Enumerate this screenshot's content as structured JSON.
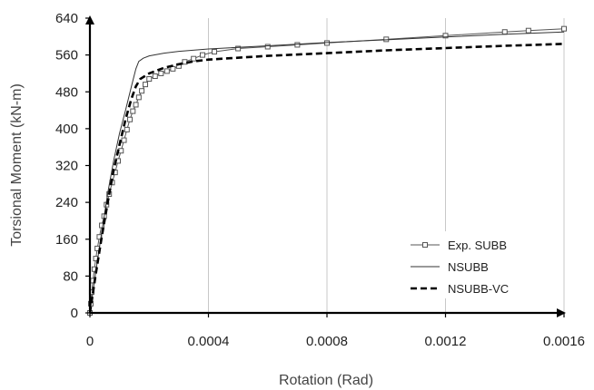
{
  "chart_data": {
    "type": "line",
    "title": "",
    "xlabel": "Rotation (Rad)",
    "ylabel": "Torsional Moment (kN-m)",
    "xlim": [
      0,
      0.0016
    ],
    "ylim": [
      0,
      640
    ],
    "x_ticks": [
      0,
      0.0004,
      0.0008,
      0.0012,
      0.0016
    ],
    "x_tick_labels": [
      "0",
      "0.0004",
      "0.0008",
      "0.0012",
      "0.0016"
    ],
    "y_ticks": [
      0,
      80,
      160,
      240,
      320,
      400,
      480,
      560,
      640
    ],
    "y_tick_labels": [
      "0",
      "80",
      "160",
      "240",
      "320",
      "400",
      "480",
      "560",
      "640"
    ],
    "grid": "vertical",
    "legend_position": "bottom-right",
    "series": [
      {
        "name": "Exp. SUBB",
        "style": "solid-square-markers",
        "color": "#555555",
        "points": [
          [
            0,
            0
          ],
          [
            3e-06,
            20
          ],
          [
            6e-06,
            45
          ],
          [
            1e-05,
            70
          ],
          [
            1.5e-05,
            95
          ],
          [
            2e-05,
            118
          ],
          [
            2.5e-05,
            140
          ],
          [
            3.2e-05,
            165
          ],
          [
            4e-05,
            190
          ],
          [
            4.8e-05,
            210
          ],
          [
            5.6e-05,
            235
          ],
          [
            6.5e-05,
            258
          ],
          [
            7.5e-05,
            283
          ],
          [
            8.5e-05,
            305
          ],
          [
            9.5e-05,
            330
          ],
          [
            0.000105,
            352
          ],
          [
            0.000115,
            375
          ],
          [
            0.000125,
            398
          ],
          [
            0.000135,
            420
          ],
          [
            0.000145,
            438
          ],
          [
            0.000155,
            452
          ],
          [
            0.000165,
            468
          ],
          [
            0.000175,
            482
          ],
          [
            0.000187,
            496
          ],
          [
            0.0002,
            508
          ],
          [
            0.00022,
            514
          ],
          [
            0.00024,
            520
          ],
          [
            0.00026,
            525
          ],
          [
            0.00028,
            530
          ],
          [
            0.0003,
            536
          ],
          [
            0.00032,
            545
          ],
          [
            0.00035,
            552
          ],
          [
            0.00038,
            560
          ],
          [
            0.00042,
            567
          ],
          [
            0.0005,
            574
          ],
          [
            0.0006,
            578
          ],
          [
            0.0007,
            582
          ],
          [
            0.0008,
            586
          ],
          [
            0.001,
            594
          ],
          [
            0.0012,
            602
          ],
          [
            0.0014,
            610
          ],
          [
            0.00148,
            613
          ],
          [
            0.0016,
            617
          ]
        ]
      },
      {
        "name": "NSUBB",
        "style": "solid",
        "color": "#333333",
        "points": [
          [
            0,
            0
          ],
          [
            2e-05,
            90
          ],
          [
            4e-05,
            175
          ],
          [
            6e-05,
            260
          ],
          [
            8e-05,
            330
          ],
          [
            0.0001,
            390
          ],
          [
            0.00012,
            440
          ],
          [
            0.00014,
            492
          ],
          [
            0.000155,
            530
          ],
          [
            0.000165,
            546
          ],
          [
            0.00018,
            553
          ],
          [
            0.0002,
            558
          ],
          [
            0.00025,
            564
          ],
          [
            0.0003,
            568
          ],
          [
            0.0004,
            573
          ],
          [
            0.0006,
            580
          ],
          [
            0.0008,
            587
          ],
          [
            0.001,
            593
          ],
          [
            0.0012,
            599
          ],
          [
            0.0014,
            605
          ],
          [
            0.0016,
            610
          ]
        ]
      },
      {
        "name": "NSUBB-VC",
        "style": "dashed-thick",
        "color": "#000000",
        "points": [
          [
            0,
            0
          ],
          [
            2e-05,
            85
          ],
          [
            4e-05,
            165
          ],
          [
            6e-05,
            240
          ],
          [
            8e-05,
            310
          ],
          [
            0.0001,
            365
          ],
          [
            0.00012,
            420
          ],
          [
            0.00014,
            465
          ],
          [
            0.000155,
            492
          ],
          [
            0.00017,
            508
          ],
          [
            0.0002,
            520
          ],
          [
            0.00025,
            532
          ],
          [
            0.0003,
            540
          ],
          [
            0.00035,
            546
          ],
          [
            0.0004,
            550
          ],
          [
            0.0006,
            558
          ],
          [
            0.0008,
            564
          ],
          [
            0.001,
            570
          ],
          [
            0.0012,
            575
          ],
          [
            0.0014,
            580
          ],
          [
            0.0016,
            584
          ]
        ]
      }
    ]
  }
}
